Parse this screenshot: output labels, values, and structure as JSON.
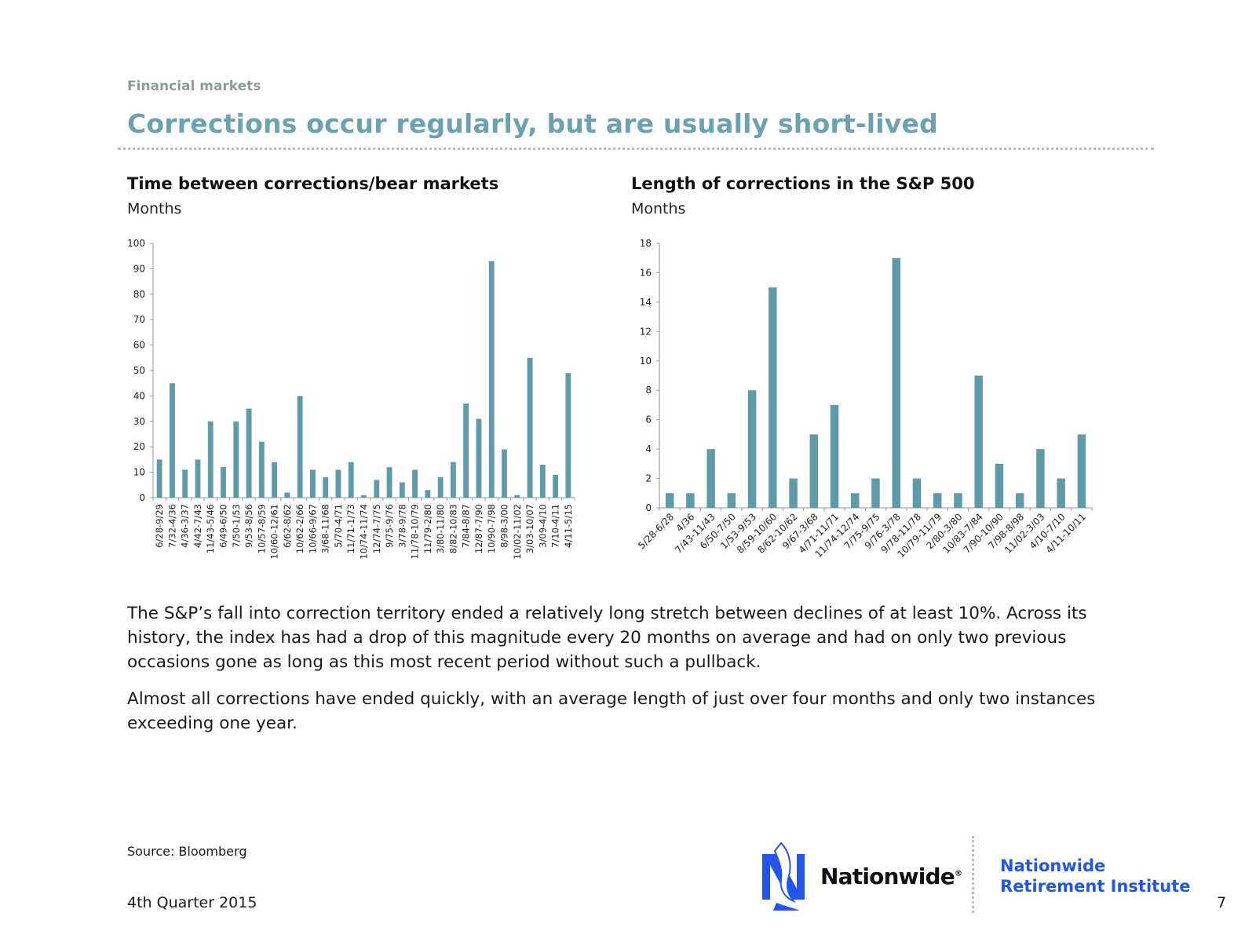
{
  "header": {
    "section": "Financial markets",
    "title": "Corrections occur regularly, but are usually short-lived"
  },
  "chart_data": [
    {
      "type": "bar",
      "title": "Time between corrections/bear markets",
      "subtitle": "Months",
      "ylim": [
        0,
        100
      ],
      "yticks": [
        0,
        10,
        20,
        30,
        40,
        50,
        60,
        70,
        80,
        90,
        100
      ],
      "color": "#5f9aa8",
      "categories": [
        "6/28-9/29",
        "7/32-4/36",
        "4/36-3/37",
        "4/42-7/43",
        "11/43-5/46",
        "6/49-6/50",
        "7/50-1/53",
        "9/53-8/56",
        "10/57-8/59",
        "10/60-12/61",
        "6/62-8/62",
        "10/62-2/66",
        "10/66-9/67",
        "3/68-11/68",
        "5/70-4/71",
        "11/71-1/73",
        "10/74-11/74",
        "12/74-7/75",
        "9/75-9/76",
        "3/78-9/78",
        "11/78-10/79",
        "11/79-2/80",
        "3/80-11/80",
        "8/82-10/83",
        "7/84-8/87",
        "12/87-7/90",
        "10/90-7/98",
        "8/98-3/00",
        "10/02-11/02",
        "3/03-10/07",
        "3/09-4/10",
        "7/10-4/11",
        "4/11-5/15"
      ],
      "values": [
        15,
        45,
        11,
        15,
        30,
        12,
        30,
        35,
        22,
        14,
        2,
        40,
        11,
        8,
        11,
        14,
        1,
        7,
        12,
        6,
        11,
        3,
        8,
        14,
        37,
        31,
        93,
        19,
        1,
        55,
        13,
        9,
        49
      ]
    },
    {
      "type": "bar",
      "title": "Length of corrections in the S&P 500",
      "subtitle": "Months",
      "ylim": [
        0,
        18
      ],
      "yticks": [
        0,
        2,
        4,
        6,
        8,
        10,
        12,
        14,
        16,
        18
      ],
      "color": "#5f9aa8",
      "categories": [
        "5/28-6/28",
        "4/36",
        "7/43-11/43",
        "6/50-7/50",
        "1/53-9/53",
        "8/59-10/60",
        "8/62-10/62",
        "9/67-3/68",
        "4/71-11/71",
        "11/74-12/74",
        "7/75-9/75",
        "9/76-3/78",
        "9/78-11/78",
        "10/79-11/79",
        "2/80-3/80",
        "10/83-7/84",
        "7/90-10/90",
        "7/98-8/98",
        "11/02-3/03",
        "4/10-7/10",
        "4/11-10/11"
      ],
      "values": [
        1,
        1,
        4,
        1,
        8,
        15,
        2,
        5,
        7,
        1,
        2,
        17,
        2,
        1,
        1,
        9,
        3,
        1,
        4,
        2,
        5
      ]
    }
  ],
  "paragraphs": [
    "The S&P’s fall into correction territory ended a relatively long stretch between declines of at least 10%. Across its history, the index has had a drop of this magnitude every 20 months on average and had on only two previous occasions gone as long as this most recent period without such a pullback.",
    "Almost all corrections have ended quickly, with an average length of just over four months and only two instances exceeding one year."
  ],
  "footer": {
    "source": "Source: Bloomberg",
    "quarter": "4th Quarter 2015",
    "page": "7",
    "logo_text": "Nationwide",
    "logo_mark": "®",
    "institute_line1": "Nationwide",
    "institute_line2": "Retirement Institute",
    "logo_icon": "eagle-logo-icon",
    "brand_color": "#2356e8"
  }
}
